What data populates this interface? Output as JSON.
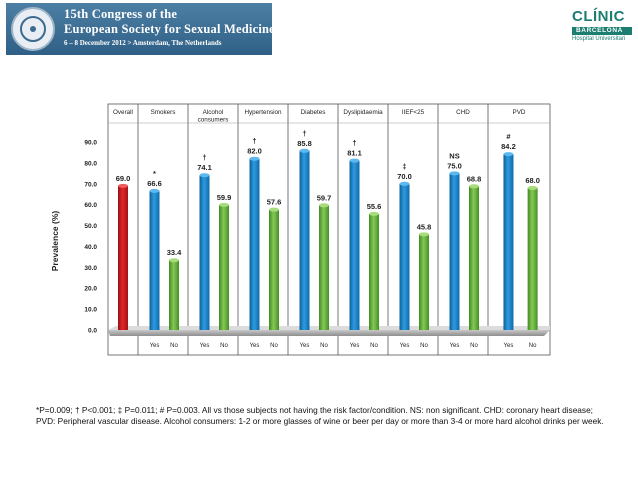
{
  "header": {
    "line1": "15th Congress of the",
    "line2": "European Society for Sexual Medicine",
    "line3": "6 – 8 December 2012 > Amsterdam, The Netherlands"
  },
  "clinic_logo": {
    "name": "CLÍNIC",
    "city": "BARCELONA",
    "subtitle": "Hospital Universitari"
  },
  "chart_data": {
    "type": "bar",
    "ylabel": "Prevalence (%)",
    "ylim": [
      0,
      100
    ],
    "yticks": [
      "0.0",
      "10.0",
      "20.0",
      "30.0",
      "40.0",
      "50.0",
      "60.0",
      "70.0",
      "80.0",
      "90.0"
    ],
    "series": [
      {
        "name": "Yes",
        "color": "#1a86c8"
      },
      {
        "name": "No",
        "color": "#6fb43e"
      }
    ],
    "overall": {
      "label": "Overall",
      "value": 69.0,
      "value_label": "69.0",
      "color": "#d0181e"
    },
    "groups": [
      {
        "label": "Smokers",
        "yes": 66.6,
        "yes_label": "66.6",
        "no": 33.4,
        "no_label": "33.4",
        "marker": "*",
        "x_yes": "Yes",
        "x_no": "No"
      },
      {
        "label": "Alcohol consumers",
        "yes": 74.1,
        "yes_label": "74.1",
        "no": 59.9,
        "no_label": "59.9",
        "marker": "†",
        "x_yes": "Yes",
        "x_no": "No"
      },
      {
        "label": "Hypertension",
        "yes": 82.0,
        "yes_label": "82.0",
        "no": 57.6,
        "no_label": "57.6",
        "marker": "†",
        "x_yes": "Yes",
        "x_no": "No"
      },
      {
        "label": "Diabetes",
        "yes": 85.8,
        "yes_label": "85.8",
        "no": 59.7,
        "no_label": "59.7",
        "marker": "†",
        "x_yes": "Yes",
        "x_no": "No"
      },
      {
        "label": "Dyslipidaemia",
        "yes": 81.1,
        "yes_label": "81.1",
        "no": 55.6,
        "no_label": "55.6",
        "marker": "†",
        "x_yes": "Yes",
        "x_no": "No"
      },
      {
        "label": "IIEF<25",
        "yes": 70.0,
        "yes_label": "70.0",
        "no": 45.8,
        "no_label": "45.8",
        "marker": "‡",
        "x_yes": "Yes",
        "x_no": "No"
      },
      {
        "label": "CHD",
        "yes": 75.0,
        "yes_label": "75.0",
        "no": 68.8,
        "no_label": "68.8",
        "marker": "NS",
        "x_yes": "Yes",
        "x_no": "No"
      },
      {
        "label": "PVD",
        "yes": 84.2,
        "yes_label": "84.2",
        "no": 68.0,
        "no_label": "68.0",
        "marker": "#",
        "x_yes": "Yes",
        "x_no": "No"
      }
    ],
    "grid": false,
    "legend": "none"
  },
  "footnote": "*P=0.009; † P<0.001; ‡ P=0.011; # P=0.003. All vs those subjects not having the risk factor/condition. NS: non significant. CHD: coronary heart disease; PVD: Peripheral vascular disease. Alcohol consumers: 1-2 or more glasses of wine or beer per day or more than 3-4 or more hard alcohol drinks per week."
}
